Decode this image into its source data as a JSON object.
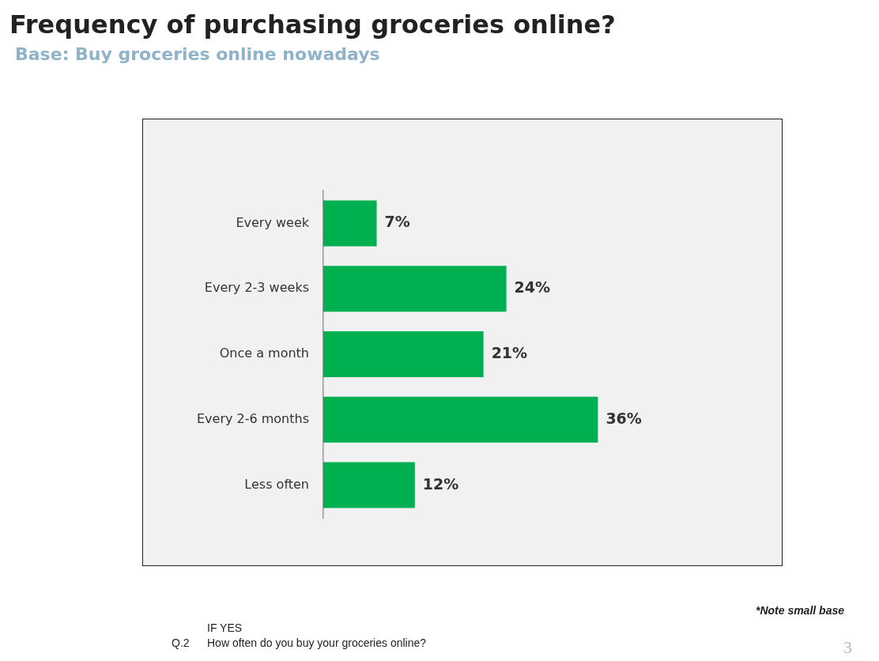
{
  "chart_data": {
    "type": "bar",
    "orientation": "horizontal",
    "title": "Frequency of purchasing groceries online?",
    "subtitle": "Base: Buy groceries online nowadays",
    "categories": [
      "Every week",
      "Every 2-3 weeks",
      "Once a month",
      "Every 2-6 months",
      "Less often"
    ],
    "values": [
      7,
      24,
      21,
      36,
      12
    ],
    "value_labels": [
      "7%",
      "24%",
      "21%",
      "36%",
      "12%"
    ],
    "color": "#00b050",
    "legend": false,
    "tick_labels": "y",
    "annotations": [
      "*Note small base",
      "IF YES",
      "Q.2",
      "How often do you buy your groceries online?",
      "3"
    ]
  }
}
